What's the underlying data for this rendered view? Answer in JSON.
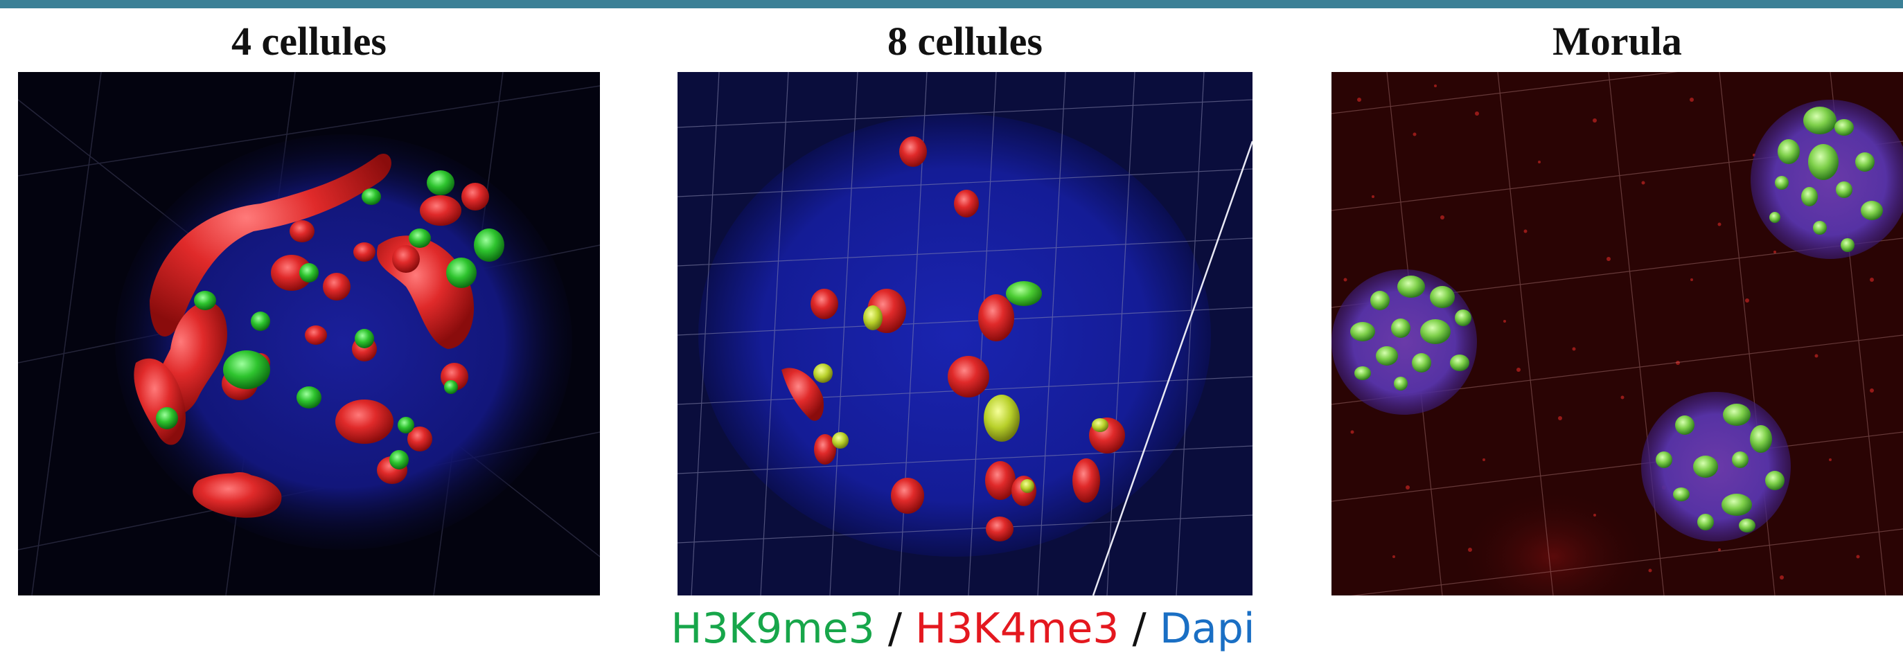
{
  "panels": [
    {
      "title": "4 cellules"
    },
    {
      "title": "8 cellules"
    },
    {
      "title": "Morula"
    }
  ],
  "legend": {
    "green_label": "H3K9me3",
    "separator1": " / ",
    "red_label": "H3K4me3",
    "separator2": " / ",
    "blue_label": "Dapi"
  },
  "colors": {
    "header_bar": "#3b8096",
    "h3k9me3": "#17a64a",
    "h3k4me3": "#e4181f",
    "dapi": "#1a6fc4"
  }
}
